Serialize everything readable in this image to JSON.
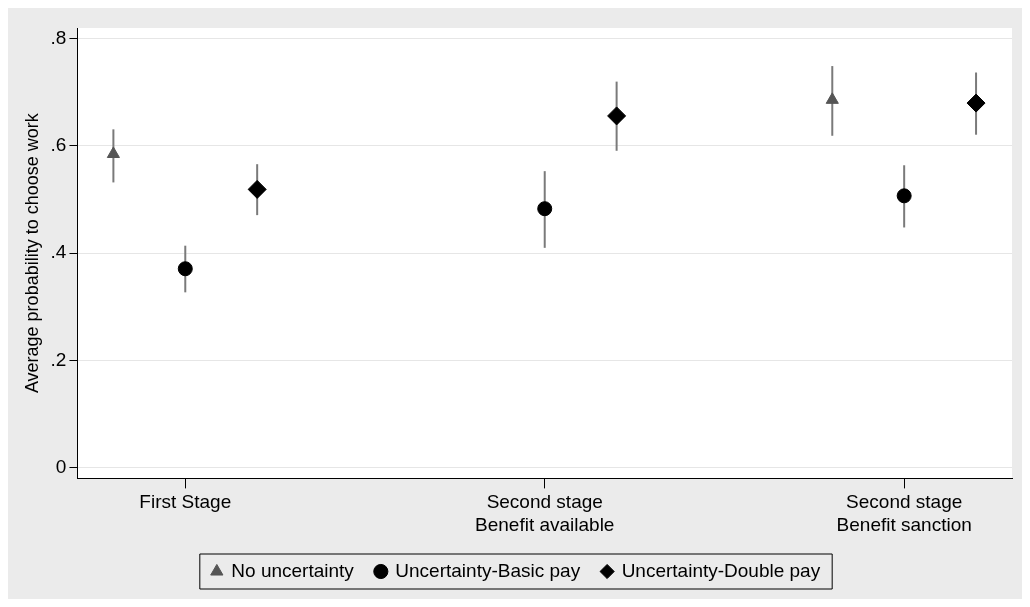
{
  "chart_data": {
    "type": "scatter",
    "ylabel": "Average probability to choose work",
    "categories": [
      null,
      "First Stage",
      null,
      null,
      null,
      null,
      "Second stage\nBenefit available",
      null,
      null,
      null,
      null,
      "Second stage\nBenefit sanction",
      null
    ],
    "ylim": [
      -0.02,
      0.82
    ],
    "yticks": [
      {
        "value": 0,
        "label": "0"
      },
      {
        "value": 0.2,
        "label": ".2"
      },
      {
        "value": 0.4,
        "label": ".4"
      },
      {
        "value": 0.6,
        "label": ".6"
      },
      {
        "value": 0.8,
        "label": ".8"
      }
    ],
    "grid": "y",
    "legend": "bottom",
    "series": [
      {
        "name": "No uncertainty",
        "color": "#555555",
        "marker": "triangle",
        "values": [
          0.585,
          null,
          null,
          null,
          null,
          null,
          null,
          null,
          null,
          null,
          0.686,
          null,
          null
        ],
        "errors": [
          [
            0.532,
            0.631
          ],
          null,
          null,
          null,
          null,
          null,
          null,
          null,
          null,
          null,
          [
            0.619,
            0.749
          ],
          null,
          null
        ]
      },
      {
        "name": "Uncertainty-Basic pay",
        "color": "#000000",
        "marker": "circle",
        "values": [
          null,
          0.371,
          null,
          null,
          null,
          null,
          0.483,
          null,
          null,
          null,
          null,
          0.507,
          null
        ],
        "errors": [
          null,
          [
            0.327,
            0.414
          ],
          null,
          null,
          null,
          null,
          [
            0.41,
            0.553
          ],
          null,
          null,
          null,
          null,
          [
            0.448,
            0.564
          ],
          null
        ]
      },
      {
        "name": "Uncertainty-Double pay",
        "color": "#000000",
        "marker": "diamond",
        "values": [
          null,
          null,
          0.519,
          null,
          null,
          null,
          null,
          0.656,
          null,
          null,
          null,
          null,
          0.68
        ],
        "errors": [
          null,
          null,
          [
            0.471,
            0.566
          ],
          null,
          null,
          null,
          null,
          [
            0.591,
            0.72
          ],
          null,
          null,
          null,
          null,
          [
            0.621,
            0.737
          ]
        ]
      }
    ]
  }
}
